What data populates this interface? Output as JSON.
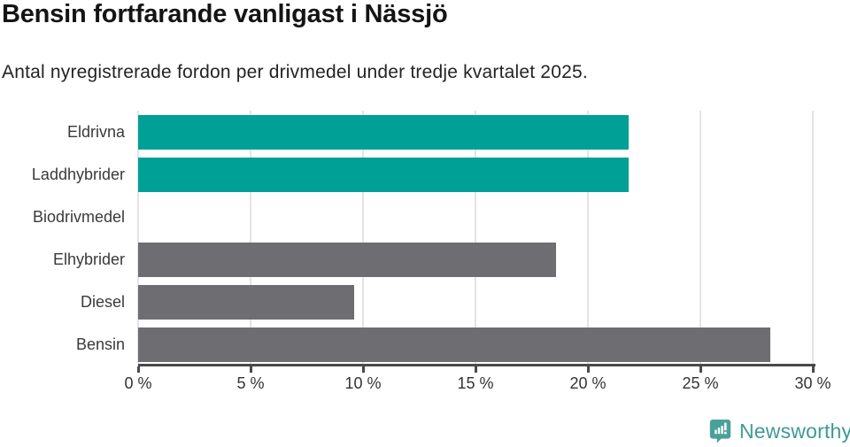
{
  "header": {
    "title": "Bensin fortfarande vanligast i Nässjö",
    "subtitle": "Antal nyregistrerade fordon per drivmedel under tredje kvartalet 2025."
  },
  "chart_data": {
    "type": "bar",
    "orientation": "horizontal",
    "title": "Bensin fortfarande vanligast i Nässjö",
    "subtitle": "Antal nyregistrerade fordon per drivmedel under tredje kvartalet 2025.",
    "categories": [
      "Eldrivna",
      "Laddhybrider",
      "Biodrivmedel",
      "Elhybrider",
      "Diesel",
      "Bensin"
    ],
    "values": [
      21.8,
      21.8,
      0,
      18.6,
      9.6,
      28.1
    ],
    "unit": "%",
    "bar_colors": [
      "#00a096",
      "#00a096",
      "#00a096",
      "#6e6d71",
      "#6e6d71",
      "#6e6d71"
    ],
    "xlabel": "",
    "ylabel": "",
    "xlim": [
      0,
      30
    ],
    "x_ticks": [
      0,
      5,
      10,
      15,
      20,
      25,
      30
    ],
    "x_tick_labels": [
      "0 %",
      "5 %",
      "10 %",
      "15 %",
      "20 %",
      "25 %",
      "30 %"
    ],
    "grid": "vertical-gridlines-on",
    "legend": "none"
  },
  "footer": {
    "brand": "Newsworthy"
  },
  "icons": {
    "logo": "newsworthy-speech-bubble-bar-chart-icon"
  },
  "colors": {
    "accent_teal": "#00a096",
    "neutral_gray": "#6e6d71",
    "brand_teal": "#4aa19b",
    "brand_text": "#3f9a94",
    "gridline": "#e4e4e4",
    "axis": "#4a4a4a",
    "title_text": "#141414",
    "label_text": "#3a3a3a"
  }
}
